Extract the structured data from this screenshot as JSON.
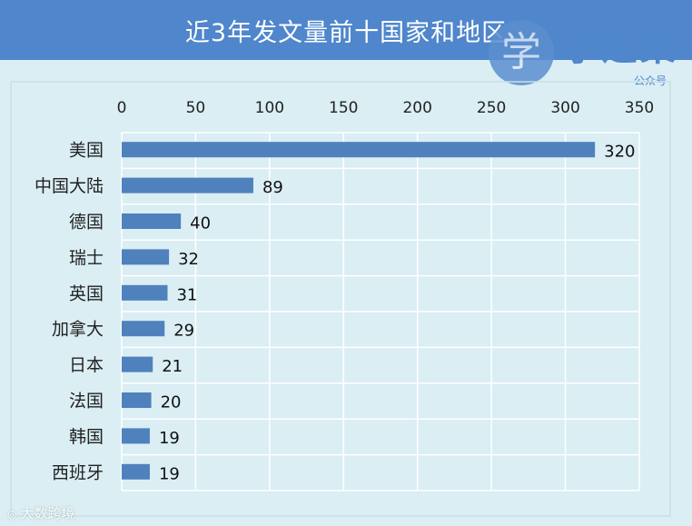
{
  "header": {
    "title": "近3年发文量前十国家和地区"
  },
  "branding": {
    "logo_char": "学",
    "name": "学之策",
    "subtitle": "公众号"
  },
  "watermark": {
    "icon": "camera-icon",
    "text": "大数跨境"
  },
  "colors": {
    "header": "#4f86cc",
    "bar": "#4f81bd",
    "background": "#daeef4",
    "plot_area": "#daeef4",
    "grid": "#ffffff"
  },
  "chart_data": {
    "type": "bar",
    "orientation": "horizontal",
    "title": "",
    "xlabel": "",
    "ylabel": "",
    "x_axis_position": "top",
    "xlim": [
      0,
      350
    ],
    "ticks": [
      0,
      50,
      100,
      150,
      200,
      250,
      300,
      350
    ],
    "grid": true,
    "legend": false,
    "categories": [
      "美国",
      "中国大陆",
      "德国",
      "瑞士",
      "英国",
      "加拿大",
      "日本",
      "法国",
      "韩国",
      "西班牙"
    ],
    "values": [
      320,
      89,
      40,
      32,
      31,
      29,
      21,
      20,
      19,
      19
    ],
    "data_labels": [
      "320",
      "89",
      "40",
      "32",
      "31",
      "29",
      "21",
      "20",
      "19",
      "19"
    ]
  }
}
